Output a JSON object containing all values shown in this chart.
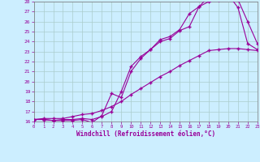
{
  "xlabel": "Windchill (Refroidissement éolien,°C)",
  "bg_color": "#cceeff",
  "grid_color": "#aacccc",
  "line_color": "#990099",
  "xmin": 0,
  "xmax": 23,
  "ymin": 16,
  "ymax": 28,
  "curve1_x": [
    0,
    1,
    2,
    3,
    4,
    5,
    6,
    7,
    8,
    9,
    10,
    11,
    12,
    13,
    14,
    15,
    16,
    17,
    18,
    19,
    20,
    21,
    22,
    23
  ],
  "curve1_y": [
    16.2,
    16.2,
    16.1,
    16.1,
    16.1,
    16.2,
    15.9,
    16.6,
    18.8,
    18.4,
    21.0,
    22.3,
    23.2,
    24.0,
    24.3,
    25.1,
    25.5,
    27.5,
    28.0,
    28.2,
    28.8,
    28.2,
    26.0,
    23.8
  ],
  "curve2_x": [
    0,
    1,
    2,
    3,
    4,
    5,
    6,
    7,
    8,
    9,
    10,
    11,
    12,
    13,
    14,
    15,
    16,
    17,
    18,
    19,
    20,
    21,
    22,
    23
  ],
  "curve2_y": [
    16.2,
    16.2,
    16.1,
    16.2,
    16.2,
    16.3,
    16.2,
    16.5,
    17.0,
    19.0,
    21.5,
    22.5,
    23.2,
    24.2,
    24.5,
    25.2,
    26.8,
    27.5,
    28.5,
    28.8,
    28.7,
    27.4,
    23.8,
    23.2
  ],
  "curve3_x": [
    0,
    1,
    2,
    3,
    4,
    5,
    6,
    7,
    8,
    9,
    10,
    11,
    12,
    13,
    14,
    15,
    16,
    17,
    18,
    19,
    20,
    21,
    22,
    23
  ],
  "curve3_y": [
    16.2,
    16.3,
    16.3,
    16.3,
    16.5,
    16.7,
    16.8,
    17.1,
    17.5,
    18.0,
    18.7,
    19.3,
    19.9,
    20.5,
    21.0,
    21.6,
    22.1,
    22.6,
    23.1,
    23.2,
    23.3,
    23.3,
    23.2,
    23.1
  ]
}
